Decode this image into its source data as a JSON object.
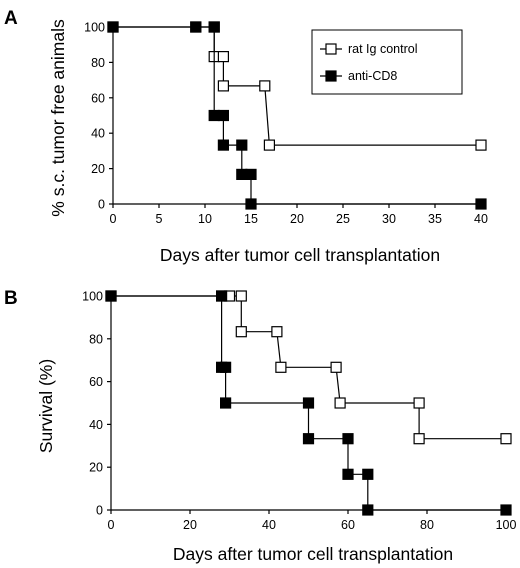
{
  "chart_data": [
    {
      "type": "line",
      "panel_label": "A",
      "xlabel": "Days after tumor cell transplantation",
      "ylabel": "% s.c. tumor free animals",
      "xlim": [
        0,
        40
      ],
      "ylim": [
        0,
        100
      ],
      "x_ticks": [
        0,
        5,
        10,
        15,
        20,
        25,
        30,
        35,
        40
      ],
      "y_ticks": [
        0,
        20,
        40,
        60,
        80,
        100
      ],
      "step": true,
      "grid": false,
      "legend": "top-right, boxed",
      "series": [
        {
          "name": "rat Ig control",
          "marker": "open-square",
          "color": "#000000",
          "points": [
            [
              0,
              100
            ],
            [
              9,
              100
            ],
            [
              11,
              100
            ],
            [
              11,
              83.3
            ],
            [
              12,
              83.3
            ],
            [
              12,
              66.7
            ],
            [
              16.5,
              66.7
            ],
            [
              17,
              33.3
            ],
            [
              40,
              33.3
            ]
          ]
        },
        {
          "name": "anti-CD8",
          "marker": "filled-square",
          "color": "#000000",
          "points": [
            [
              0,
              100
            ],
            [
              9,
              100
            ],
            [
              11,
              100
            ],
            [
              11,
              50
            ],
            [
              12,
              50
            ],
            [
              12,
              33.3
            ],
            [
              14,
              33.3
            ],
            [
              14,
              16.7
            ],
            [
              15,
              16.7
            ],
            [
              15,
              0
            ],
            [
              40,
              0
            ]
          ]
        }
      ]
    },
    {
      "type": "line",
      "panel_label": "B",
      "xlabel": "Days after tumor cell transplantation",
      "ylabel": "Survival (%)",
      "xlim": [
        0,
        100
      ],
      "ylim": [
        0,
        100
      ],
      "x_ticks": [
        0,
        20,
        40,
        60,
        80,
        100
      ],
      "y_ticks": [
        0,
        20,
        40,
        60,
        80,
        100
      ],
      "step": true,
      "grid": false,
      "series": [
        {
          "name": "rat Ig control",
          "marker": "open-square",
          "color": "#000000",
          "points": [
            [
              0,
              100
            ],
            [
              28,
              100
            ],
            [
              30,
              100
            ],
            [
              33,
              100
            ],
            [
              33,
              83.3
            ],
            [
              42,
              83.3
            ],
            [
              43,
              66.7
            ],
            [
              57,
              66.7
            ],
            [
              58,
              50
            ],
            [
              78,
              50
            ],
            [
              78,
              33.3
            ],
            [
              100,
              33.3
            ]
          ]
        },
        {
          "name": "anti-CD8",
          "marker": "filled-square",
          "color": "#000000",
          "points": [
            [
              0,
              100
            ],
            [
              28,
              100
            ],
            [
              28,
              66.7
            ],
            [
              29,
              66.7
            ],
            [
              29,
              50
            ],
            [
              50,
              50
            ],
            [
              50,
              33.3
            ],
            [
              60,
              33.3
            ],
            [
              60,
              16.7
            ],
            [
              65,
              16.7
            ],
            [
              65,
              0
            ],
            [
              100,
              0
            ]
          ]
        }
      ]
    }
  ]
}
